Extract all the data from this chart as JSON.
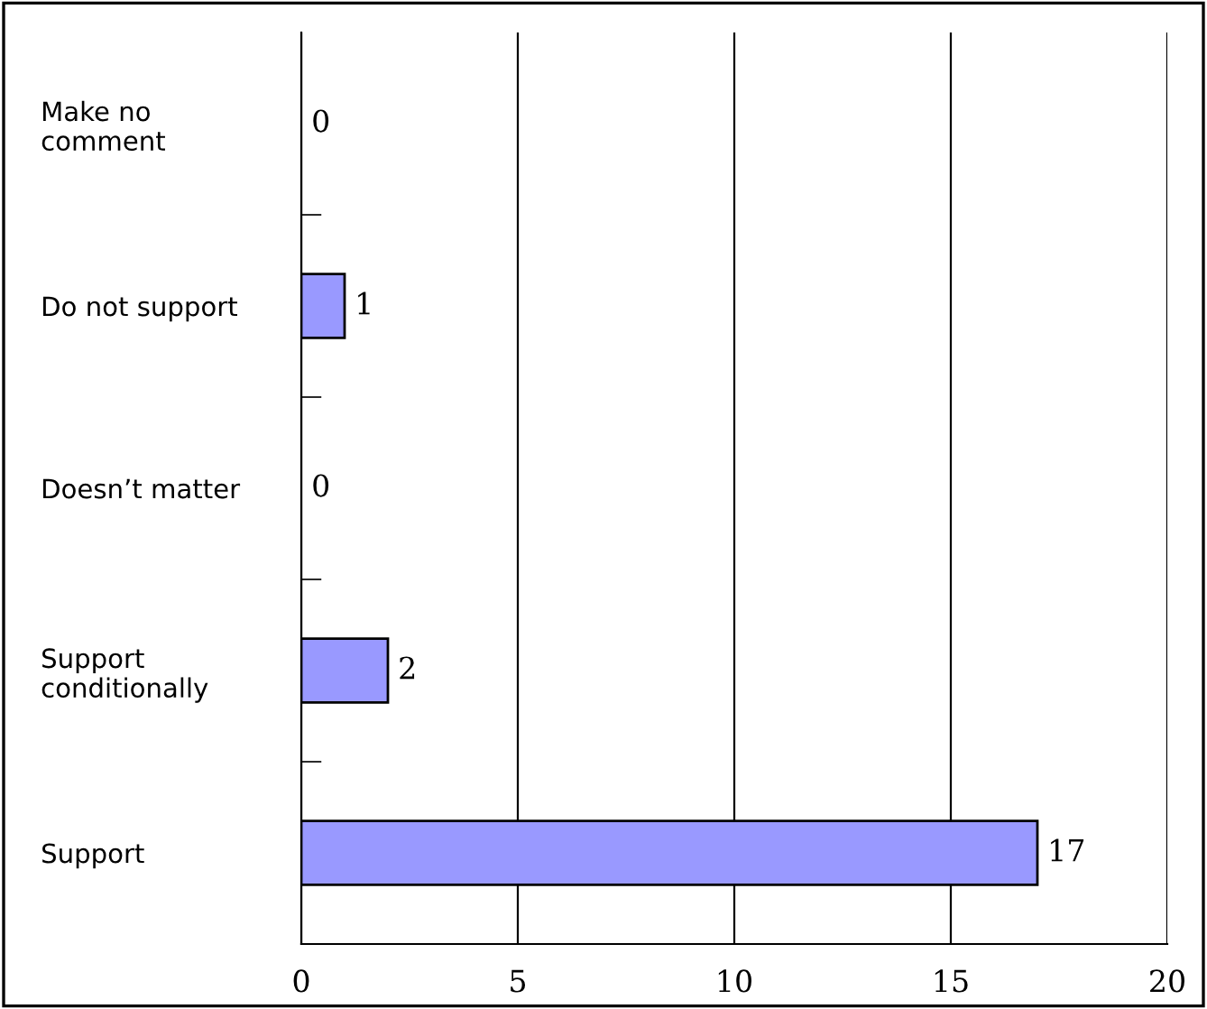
{
  "chart_data": {
    "type": "bar",
    "orientation": "horizontal",
    "categories": [
      "Make no\ncomment",
      "Do not support",
      "Doesn’t matter",
      "Support\nconditionally",
      "Support"
    ],
    "values": [
      0,
      1,
      0,
      2,
      17
    ],
    "color": "#9999ff",
    "xlim": [
      0,
      20
    ],
    "xticks": [
      0,
      5,
      10,
      15,
      20
    ],
    "grid": "x",
    "data_labels": true
  }
}
